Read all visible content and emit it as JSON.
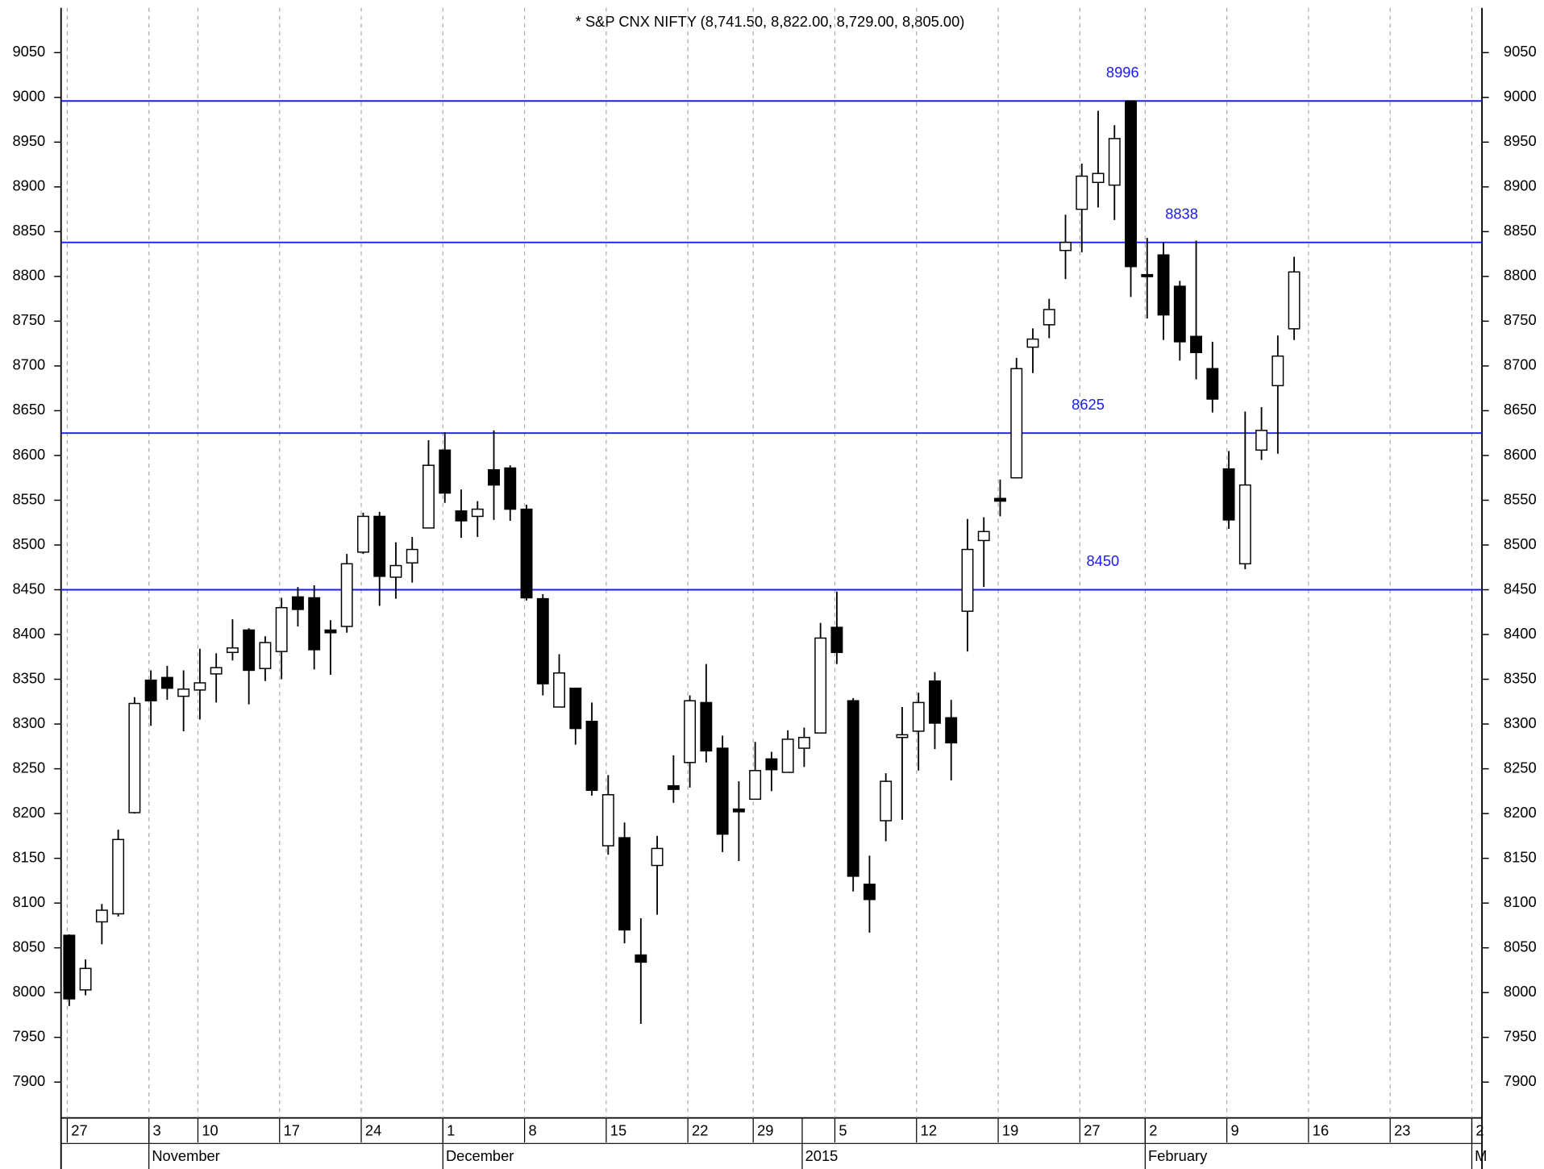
{
  "chart_data": {
    "type": "candlestick",
    "title": "* S&P CNX NIFTY (8,741.50, 8,822.00, 8,729.00, 8,805.00)",
    "x": [
      0,
      1,
      2,
      3,
      4,
      5,
      6,
      7,
      8,
      9,
      10,
      11,
      12,
      13,
      14,
      15,
      16,
      17,
      18,
      19,
      20,
      21,
      22,
      23,
      24,
      25,
      26,
      27,
      28,
      29,
      30,
      31,
      32,
      33,
      34,
      35,
      36,
      37,
      38,
      39,
      40,
      41,
      42,
      43,
      44,
      45,
      46,
      47,
      48,
      49,
      50,
      51,
      52,
      53,
      54,
      55,
      56,
      57,
      58,
      59,
      60,
      61,
      62,
      63,
      64,
      65,
      66,
      67,
      68,
      69,
      70,
      71,
      72,
      73,
      74,
      75
    ],
    "open": [
      8064,
      8003,
      8079,
      8088,
      8201,
      8349,
      8352,
      8331,
      8338,
      8356,
      8380,
      8405,
      8362,
      8381,
      8442,
      8441,
      8405,
      8409,
      8492,
      8532,
      8464,
      8480,
      8519,
      8606,
      8538,
      8532,
      8584,
      8586,
      8540,
      8440,
      8319,
      8340,
      8303,
      8164,
      8173,
      8042,
      8142,
      8231,
      8257,
      8324,
      8273,
      8205,
      8216,
      8261,
      8246,
      8273,
      8290,
      8408,
      8326,
      8121,
      8192,
      8285,
      8292,
      8348,
      8307,
      8426,
      8505,
      8552,
      8575,
      8721,
      8746,
      8829,
      8875,
      8905,
      8902,
      8996,
      8802,
      8824,
      8789,
      8733,
      8697,
      8585,
      8479,
      8606,
      8678,
      8741.5
    ],
    "high": [
      8065,
      8037,
      8099,
      8182,
      8330,
      8360,
      8365,
      8360,
      8384,
      8379,
      8417,
      8407,
      8398,
      8441,
      8453,
      8455,
      8416,
      8490,
      8536,
      8537,
      8503,
      8509,
      8617,
      8626,
      8562,
      8549,
      8628,
      8589,
      8545,
      8445,
      8378,
      8340,
      8324,
      8243,
      8190,
      8083,
      8175,
      8265,
      8332,
      8367,
      8287,
      8236,
      8280,
      8269,
      8293,
      8296,
      8413,
      8448,
      8329,
      8153,
      8245,
      8319,
      8335,
      8358,
      8327,
      8529,
      8531,
      8573,
      8709,
      8742,
      8775,
      8869,
      8926,
      8985,
      8969,
      8996,
      8843,
      8838,
      8795,
      8840,
      8727,
      8605,
      8649,
      8654,
      8734,
      8822
    ],
    "low": [
      7985,
      7997,
      8054,
      8085,
      8200,
      8298,
      8327,
      8292,
      8305,
      8324,
      8371,
      8322,
      8348,
      8350,
      8409,
      8361,
      8355,
      8402,
      8490,
      8432,
      8440,
      8458,
      8519,
      8547,
      8508,
      8509,
      8528,
      8527,
      8438,
      8332,
      8319,
      8277,
      8220,
      8154,
      8055,
      7965,
      8087,
      8212,
      8229,
      8257,
      8157,
      8147,
      8216,
      8225,
      8246,
      8252,
      8290,
      8367,
      8113,
      8067,
      8169,
      8193,
      8248,
      8272,
      8237,
      8381,
      8453,
      8532,
      8575,
      8692,
      8731,
      8797,
      8827,
      8877,
      8863,
      8777,
      8753,
      8729,
      8706,
      8685,
      8648,
      8518,
      8473,
      8595,
      8602,
      8729
    ],
    "close": [
      7993,
      8027,
      8092,
      8171,
      8323,
      8326,
      8340,
      8339,
      8346,
      8363,
      8385,
      8360,
      8391,
      8430,
      8428,
      8383,
      8402,
      8479,
      8532,
      8465,
      8477,
      8495,
      8589,
      8558,
      8527,
      8540,
      8567,
      8540,
      8441,
      8345,
      8357,
      8295,
      8226,
      8221,
      8070,
      8034,
      8161,
      8227,
      8326,
      8270,
      8177,
      8202,
      8248,
      8249,
      8283,
      8285,
      8396,
      8380,
      8130,
      8104,
      8236,
      8288,
      8324,
      8301,
      8279,
      8495,
      8515,
      8549,
      8697,
      8730,
      8763,
      8838,
      8912,
      8915,
      8954,
      8811,
      8800,
      8757,
      8727,
      8715,
      8663,
      8528,
      8567,
      8628,
      8711,
      8805
    ],
    "up_color": "#ffffff",
    "down_color": "#000000",
    "xlim": [
      -0.5,
      86.5
    ],
    "xticks": [
      {
        "value": 0,
        "label": "27"
      },
      {
        "value": 5,
        "label": "3"
      },
      {
        "value": 8,
        "label": "10"
      },
      {
        "value": 13,
        "label": "17"
      },
      {
        "value": 18,
        "label": "24"
      },
      {
        "value": 23,
        "label": "1"
      },
      {
        "value": 28,
        "label": "8"
      },
      {
        "value": 33,
        "label": "15"
      },
      {
        "value": 38,
        "label": "22"
      },
      {
        "value": 42,
        "label": "29"
      },
      {
        "value": 47,
        "label": "5"
      },
      {
        "value": 52,
        "label": "12"
      },
      {
        "value": 57,
        "label": "19"
      },
      {
        "value": 62,
        "label": "27"
      },
      {
        "value": 66,
        "label": "2"
      },
      {
        "value": 71,
        "label": "9"
      },
      {
        "value": 76,
        "label": "16"
      },
      {
        "value": 81,
        "label": "23"
      },
      {
        "value": 86,
        "label": "2"
      }
    ],
    "months": [
      {
        "value": 5,
        "label": "November"
      },
      {
        "value": 23,
        "label": "December"
      },
      {
        "value": 45,
        "label": "2015"
      },
      {
        "value": 66,
        "label": "February"
      },
      {
        "value": 86,
        "label": "M"
      }
    ],
    "ylim": [
      7860,
      9100
    ],
    "yticks": [
      7900,
      7950,
      8000,
      8050,
      8100,
      8150,
      8200,
      8250,
      8300,
      8350,
      8400,
      8450,
      8500,
      8550,
      8600,
      8650,
      8700,
      8750,
      8800,
      8850,
      8900,
      8950,
      9000,
      9050
    ],
    "levels": [
      8996,
      8838,
      8625,
      8450
    ],
    "level_color": "#1a1aff",
    "grid": true
  }
}
